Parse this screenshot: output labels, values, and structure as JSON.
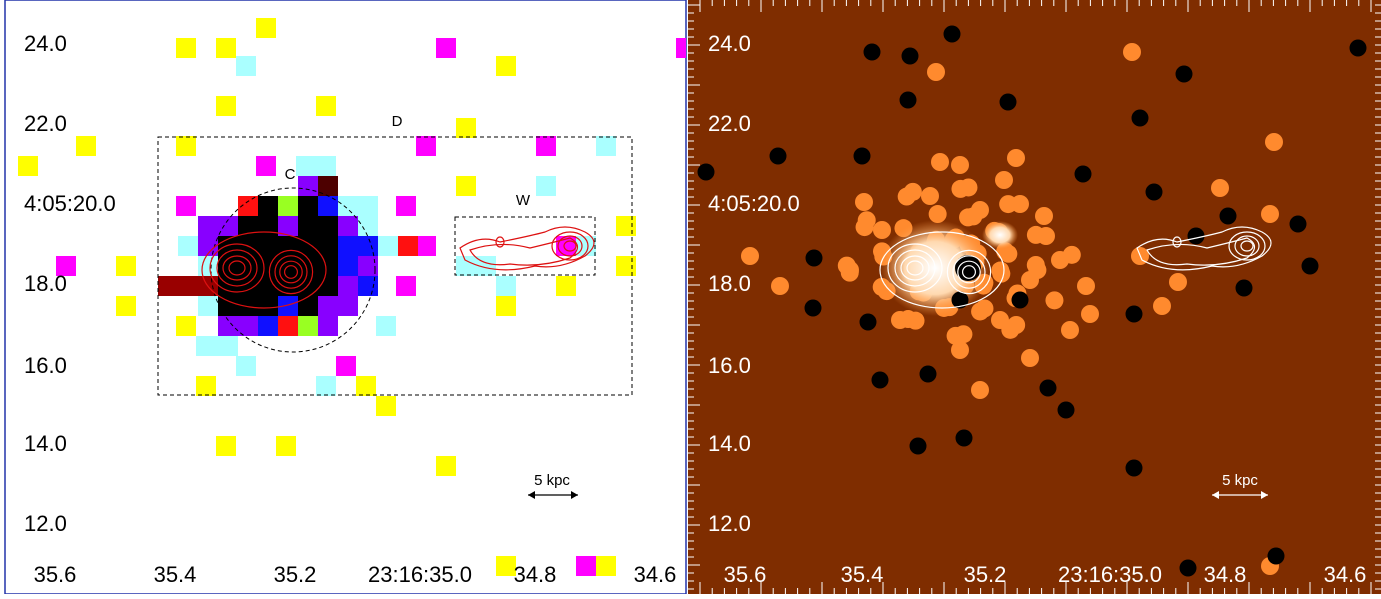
{
  "left_panel": {
    "y_labels": [
      "24.0",
      "22.0",
      "4:05:20.0",
      "18.0",
      "16.0",
      "14.0",
      "12.0"
    ],
    "x_labels": [
      "35.6",
      "35.4",
      "35.2",
      "23:16:35.0",
      "34.8",
      "34.6"
    ],
    "annotations": {
      "region_d": "D",
      "region_c": "C",
      "region_w": "W",
      "scale": "5 kpc"
    }
  },
  "right_panel": {
    "y_labels": [
      "24.0",
      "22.0",
      "4:05:20.0",
      "18.0",
      "16.0",
      "14.0",
      "12.0"
    ],
    "x_labels": [
      "35.6",
      "35.4",
      "35.2",
      "23:16:35.0",
      "34.8",
      "34.6"
    ],
    "scale": "5 kpc"
  }
}
